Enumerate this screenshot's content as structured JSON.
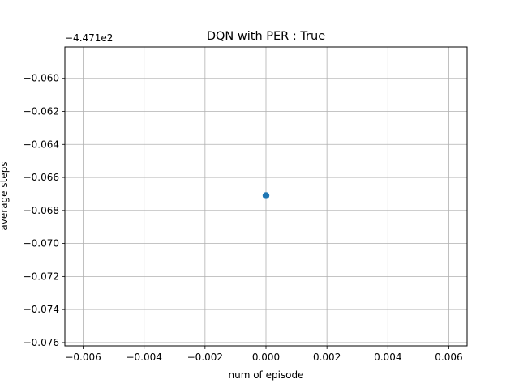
{
  "chart_data": {
    "type": "scatter",
    "title": "DQN with PER : True",
    "xlabel": "num of episode",
    "ylabel": "average steps",
    "y_offset_label": "−4.471e2",
    "xlim": [
      -0.0066,
      0.0066
    ],
    "ylim": [
      -0.0762,
      -0.0581
    ],
    "x_ticks": [
      -0.006,
      -0.004,
      -0.002,
      0.0,
      0.002,
      0.004,
      0.006
    ],
    "x_tick_labels": [
      "−0.006",
      "−0.004",
      "−0.002",
      "0.000",
      "0.002",
      "0.004",
      "0.006"
    ],
    "y_ticks": [
      -0.06,
      -0.062,
      -0.064,
      -0.066,
      -0.068,
      -0.07,
      -0.072,
      -0.074,
      -0.076
    ],
    "y_tick_labels": [
      "−0.060",
      "−0.062",
      "−0.064",
      "−0.066",
      "−0.068",
      "−0.070",
      "−0.072",
      "−0.074",
      "−0.076"
    ],
    "grid": true,
    "series": [
      {
        "x": [
          0.0
        ],
        "y": [
          -0.0671
        ],
        "color": "#1f77b4"
      }
    ]
  }
}
